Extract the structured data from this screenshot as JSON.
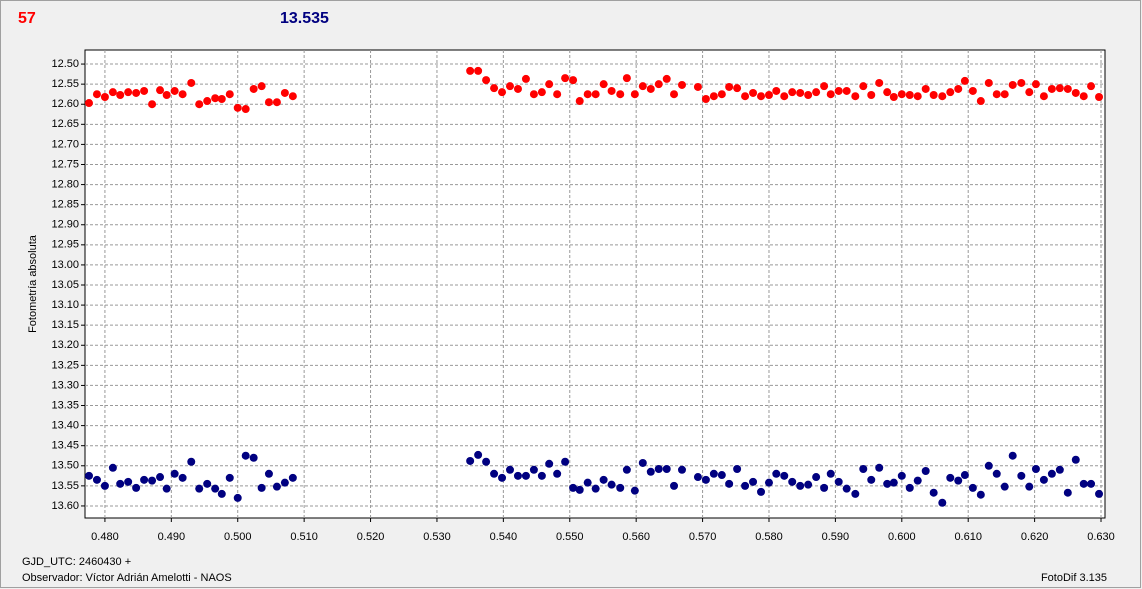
{
  "chart_data": {
    "type": "scatter",
    "header_left": "57",
    "header_right": "13.535",
    "ylabel": "Fotometría absoluta",
    "footer_left_1": "GJD_UTC: 2460430 +",
    "footer_left_2": "Observador: Víctor Adrián Amelotti - NAOS",
    "footer_right": "FotoDif 3.135",
    "grid": true,
    "xlim": [
      0.477,
      0.6306
    ],
    "ylim": [
      13.63,
      12.465
    ],
    "xticks": [
      {
        "value": 0.48,
        "label": "0.480"
      },
      {
        "value": 0.49,
        "label": "0.490"
      },
      {
        "value": 0.5,
        "label": "0.500"
      },
      {
        "value": 0.51,
        "label": "0.510"
      },
      {
        "value": 0.52,
        "label": "0.520"
      },
      {
        "value": 0.53,
        "label": "0.530"
      },
      {
        "value": 0.54,
        "label": "0.540"
      },
      {
        "value": 0.55,
        "label": "0.550"
      },
      {
        "value": 0.56,
        "label": "0.560"
      },
      {
        "value": 0.57,
        "label": "0.570"
      },
      {
        "value": 0.58,
        "label": "0.580"
      },
      {
        "value": 0.59,
        "label": "0.590"
      },
      {
        "value": 0.6,
        "label": "0.600"
      },
      {
        "value": 0.61,
        "label": "0.610"
      },
      {
        "value": 0.62,
        "label": "0.620"
      },
      {
        "value": 0.63,
        "label": "0.630"
      }
    ],
    "yticks": [
      {
        "value": 12.5,
        "label": "12.50"
      },
      12.55,
      {
        "value": 12.6,
        "label": "12.60"
      },
      12.65,
      {
        "value": 12.7,
        "label": "12.70"
      },
      12.75,
      {
        "value": 12.8,
        "label": "12.80"
      },
      12.85,
      {
        "value": 12.9,
        "label": "12.90"
      },
      12.95,
      {
        "value": 13,
        "label": "13.00"
      },
      13.05,
      {
        "value": 13.1,
        "label": "13.10"
      },
      13.15,
      {
        "value": 13.2,
        "label": "13.20"
      },
      13.25,
      {
        "value": 13.3,
        "label": "13.30"
      },
      13.35,
      {
        "value": 13.4,
        "label": "13.40"
      },
      13.45,
      {
        "value": 13.5,
        "label": "13.50"
      },
      13.55,
      {
        "value": 13.6,
        "label": "13.60"
      }
    ],
    "x": [
      0.4776,
      0.4788,
      0.48,
      0.4812,
      0.4823,
      0.4835,
      0.4847,
      0.4859,
      0.4871,
      0.4883,
      0.4893,
      0.4905,
      0.4917,
      0.493,
      0.4942,
      0.4954,
      0.4966,
      0.4976,
      0.4988,
      0.5,
      0.5012,
      0.5024,
      0.5036,
      0.5047,
      0.5059,
      0.5071,
      0.5083,
      0.535,
      0.5362,
      0.5374,
      0.5386,
      0.5398,
      0.541,
      0.5422,
      0.5434,
      0.5446,
      0.5458,
      0.5469,
      0.5481,
      0.5493,
      0.5505,
      0.5515,
      0.5527,
      0.5539,
      0.5551,
      0.5563,
      0.5576,
      0.5586,
      0.5598,
      0.561,
      0.5622,
      0.5634,
      0.5646,
      0.5657,
      0.5669,
      0.5693,
      0.5705,
      0.5717,
      0.5729,
      0.574,
      0.5752,
      0.5764,
      0.5776,
      0.5788,
      0.58,
      0.5811,
      0.5823,
      0.5835,
      0.5847,
      0.5859,
      0.5871,
      0.5883,
      0.5893,
      0.5905,
      0.5917,
      0.593,
      0.5942,
      0.5954,
      0.5966,
      0.5978,
      0.5988,
      0.6,
      0.6012,
      0.6024,
      0.6036,
      0.6048,
      0.6061,
      0.6073,
      0.6085,
      0.6095,
      0.6107,
      0.6119,
      0.6131,
      0.6143,
      0.6155,
      0.6167,
      0.618,
      0.6192,
      0.6202,
      0.6214,
      0.6226,
      0.6238,
      0.625,
      0.6262,
      0.6274,
      0.6285,
      0.6297
    ],
    "series": [
      {
        "color": "#ff0000",
        "values": [
          12.597,
          12.575,
          12.582,
          12.57,
          12.577,
          12.57,
          12.572,
          12.567,
          12.6,
          12.565,
          12.577,
          12.567,
          12.575,
          12.547,
          12.6,
          12.592,
          12.585,
          12.587,
          12.575,
          12.609,
          12.612,
          12.562,
          12.555,
          12.595,
          12.595,
          12.572,
          12.58,
          12.517,
          12.517,
          12.54,
          12.56,
          12.57,
          12.555,
          12.562,
          12.537,
          12.575,
          12.57,
          12.55,
          12.575,
          12.535,
          12.54,
          12.592,
          12.575,
          12.575,
          12.55,
          12.567,
          12.575,
          12.535,
          12.575,
          12.555,
          12.562,
          12.55,
          12.537,
          12.575,
          12.552,
          12.557,
          12.587,
          12.58,
          12.575,
          12.557,
          12.56,
          12.58,
          12.572,
          12.58,
          12.577,
          12.567,
          12.58,
          12.57,
          12.572,
          12.577,
          12.57,
          12.555,
          12.575,
          12.567,
          12.567,
          12.58,
          12.555,
          12.577,
          12.547,
          12.57,
          12.582,
          12.575,
          12.577,
          12.58,
          12.562,
          12.577,
          12.58,
          12.57,
          12.562,
          12.542,
          12.567,
          12.592,
          12.547,
          12.575,
          12.575,
          12.552,
          12.547,
          12.57,
          12.55,
          12.58,
          12.562,
          12.56,
          12.562,
          12.572,
          12.58,
          12.555,
          12.582
        ]
      },
      {
        "color": "#000080",
        "values": [
          13.525,
          13.535,
          13.55,
          13.505,
          13.545,
          13.54,
          13.555,
          13.535,
          13.537,
          13.528,
          13.557,
          13.52,
          13.53,
          13.49,
          13.557,
          13.545,
          13.557,
          13.57,
          13.53,
          13.58,
          13.475,
          13.48,
          13.555,
          13.52,
          13.552,
          13.542,
          13.53,
          13.488,
          13.473,
          13.49,
          13.52,
          13.53,
          13.51,
          13.525,
          13.525,
          13.51,
          13.525,
          13.495,
          13.52,
          13.49,
          13.555,
          13.56,
          13.542,
          13.557,
          13.535,
          13.547,
          13.555,
          13.51,
          13.562,
          13.493,
          13.515,
          13.508,
          13.508,
          13.55,
          13.51,
          13.528,
          13.535,
          13.52,
          13.523,
          13.545,
          13.508,
          13.55,
          13.54,
          13.565,
          13.542,
          13.52,
          13.525,
          13.54,
          13.55,
          13.547,
          13.528,
          13.555,
          13.52,
          13.54,
          13.557,
          13.57,
          13.508,
          13.535,
          13.505,
          13.545,
          13.542,
          13.525,
          13.555,
          13.537,
          13.513,
          13.567,
          13.592,
          13.53,
          13.537,
          13.523,
          13.555,
          13.572,
          13.5,
          13.52,
          13.552,
          13.475,
          13.525,
          13.552,
          13.508,
          13.535,
          13.52,
          13.51,
          13.567,
          13.485,
          13.545,
          13.545,
          13.57
        ]
      }
    ]
  }
}
